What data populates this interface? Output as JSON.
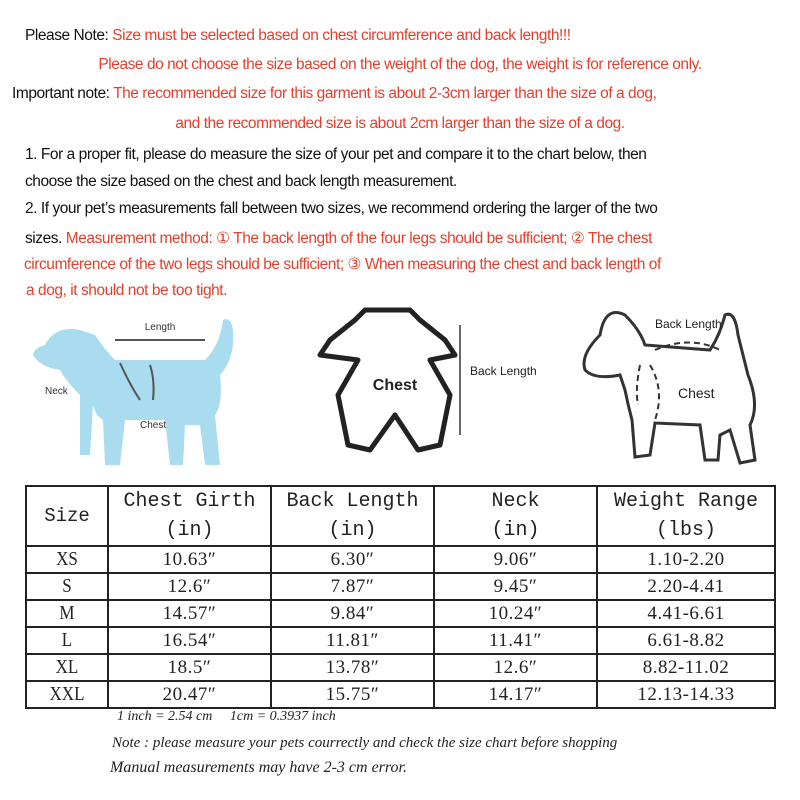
{
  "notes": {
    "please_note_label": "Please Note:",
    "please_note_text": "Size must be selected based on chest circumference and back length!!!",
    "weight_note": "Please do not choose the size based on the weight of the dog, the weight is for reference only.",
    "important_label": "Important note:",
    "important_text_1": "The recommended size for this garment is about 2-3cm larger than the size of a dog,",
    "important_text_2": "and the recommended size is about 2cm larger than the size of a dog.",
    "step1_a": "1. For a proper fit, please do measure the size of your pet and compare it to the chart below, then",
    "step1_b": "choose the size based on the chest and back length measurement.",
    "step2_a": "2. If your pet’s measurements fall between two sizes, we recommend ordering the larger of the two",
    "step2_b_black": "sizes.",
    "step2_b_red": "Measurement method: ① The back length of the four legs should be sufficient; ② The chest",
    "step2_c": "circumference of the two legs should be sufficient; ③ When measuring the chest and back length of",
    "step2_d": "a dog, it should not be too tight."
  },
  "illustrations": {
    "blue_dog": {
      "length": "Length",
      "neck": "Neck",
      "chest": "Chest"
    },
    "garment": {
      "chest": "Chest",
      "back_length": "Back Length"
    },
    "outline_dog": {
      "back_length": "Back Length",
      "chest": "Chest"
    }
  },
  "colors": {
    "accent_red": "#e0402e",
    "dog_blue": "#a9dcef"
  },
  "table": {
    "headers": [
      {
        "l1": "Size",
        "l2": ""
      },
      {
        "l1": "Chest Girth",
        "l2": "(in)"
      },
      {
        "l1": "Back Length",
        "l2": "(in)"
      },
      {
        "l1": "Neck",
        "l2": "(in)"
      },
      {
        "l1": "Weight Range",
        "l2": "(lbs)"
      }
    ],
    "rows": [
      [
        "XS",
        "10.63″",
        "6.30″",
        "9.06″",
        "1.10-2.20"
      ],
      [
        "S",
        "12.6″",
        "7.87″",
        "9.45″",
        "2.20-4.41"
      ],
      [
        "M",
        "14.57″",
        "9.84″",
        "10.24″",
        "4.41-6.61"
      ],
      [
        "L",
        "16.54″",
        "11.81″",
        "11.41″",
        "6.61-8.82"
      ],
      [
        "XL",
        "18.5″",
        "13.78″",
        "12.6″",
        "8.82-11.02"
      ],
      [
        "XXL",
        "20.47″",
        "15.75″",
        "14.17″",
        "12.13-14.33"
      ]
    ]
  },
  "footer": {
    "conversion": "1 inch = 2.54 cm     1cm = 0.3937 inch",
    "note": "Note : please measure your pets courrectly and check the size chart before shopping",
    "error": "Manual measurements may have 2-3 cm error."
  }
}
